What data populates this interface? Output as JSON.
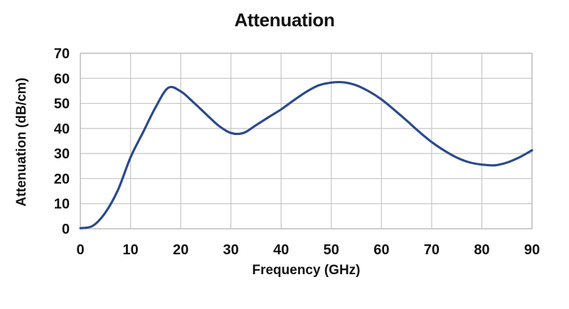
{
  "chart_data": {
    "type": "line",
    "title": "Attenuation",
    "xlabel": "Frequency (GHz)",
    "ylabel": "Attenuation (dB/cm)",
    "xlim": [
      0,
      90
    ],
    "ylim": [
      0,
      70
    ],
    "x_ticks": [
      0,
      10,
      20,
      30,
      40,
      50,
      60,
      70,
      80,
      90
    ],
    "y_ticks": [
      0,
      10,
      20,
      30,
      40,
      50,
      60,
      70
    ],
    "grid": true,
    "legend": false,
    "series": [
      {
        "name": "Attenuation",
        "color": "#2b4a8c",
        "x": [
          0,
          2.5,
          5,
          7.5,
          10,
          12.5,
          15,
          17.5,
          20,
          22.5,
          25,
          27.5,
          30,
          32.5,
          35,
          37.5,
          40,
          42.5,
          45,
          47.5,
          50,
          52.5,
          55,
          57.5,
          60,
          62.5,
          65,
          67.5,
          70,
          72.5,
          75,
          77.5,
          80,
          82.5,
          85,
          87.5,
          90
        ],
        "y": [
          0.2,
          1.2,
          6.5,
          15.5,
          28.5,
          38.5,
          48.5,
          56.2,
          54.8,
          50.5,
          45.8,
          41.2,
          38.2,
          38.2,
          41.3,
          44.5,
          47.6,
          51.2,
          54.6,
          57.2,
          58.3,
          58.4,
          57.2,
          54.8,
          51.6,
          47.5,
          43.2,
          38.7,
          34.6,
          31.2,
          28.4,
          26.5,
          25.6,
          25.3,
          26.4,
          28.5,
          31.3
        ]
      }
    ],
    "annotations": {
      "first_peak": "≈56 dB/cm at ≈17.5 GHz",
      "first_dip": "≈38 dB/cm at ≈31 GHz",
      "second_peak": "≈58.5 dB/cm at ≈51.5 GHz",
      "second_dip": "≈25 dB/cm at ≈81.5 GHz"
    },
    "colors": {
      "line": "#2b4a8c",
      "grid": "#c6c6c6",
      "plot_border": "#b9b9b9",
      "text": "#111111",
      "background": "#ffffff"
    }
  }
}
